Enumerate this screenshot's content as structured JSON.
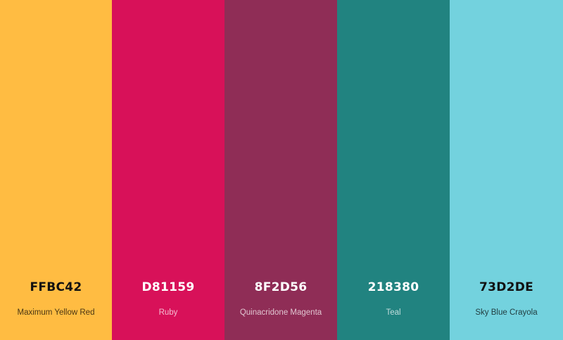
{
  "palette": {
    "colors": [
      {
        "hex": "FFBC42",
        "name": "Maximum Yellow Red",
        "color": "#FFBC42"
      },
      {
        "hex": "D81159",
        "name": "Ruby",
        "color": "#D81159"
      },
      {
        "hex": "8F2D56",
        "name": "Quinacridone Magenta",
        "color": "#8F2D56"
      },
      {
        "hex": "218380",
        "name": "Teal",
        "color": "#218380"
      },
      {
        "hex": "73D2DE",
        "name": "Sky Blue Crayola",
        "color": "#73D2DE"
      }
    ]
  }
}
